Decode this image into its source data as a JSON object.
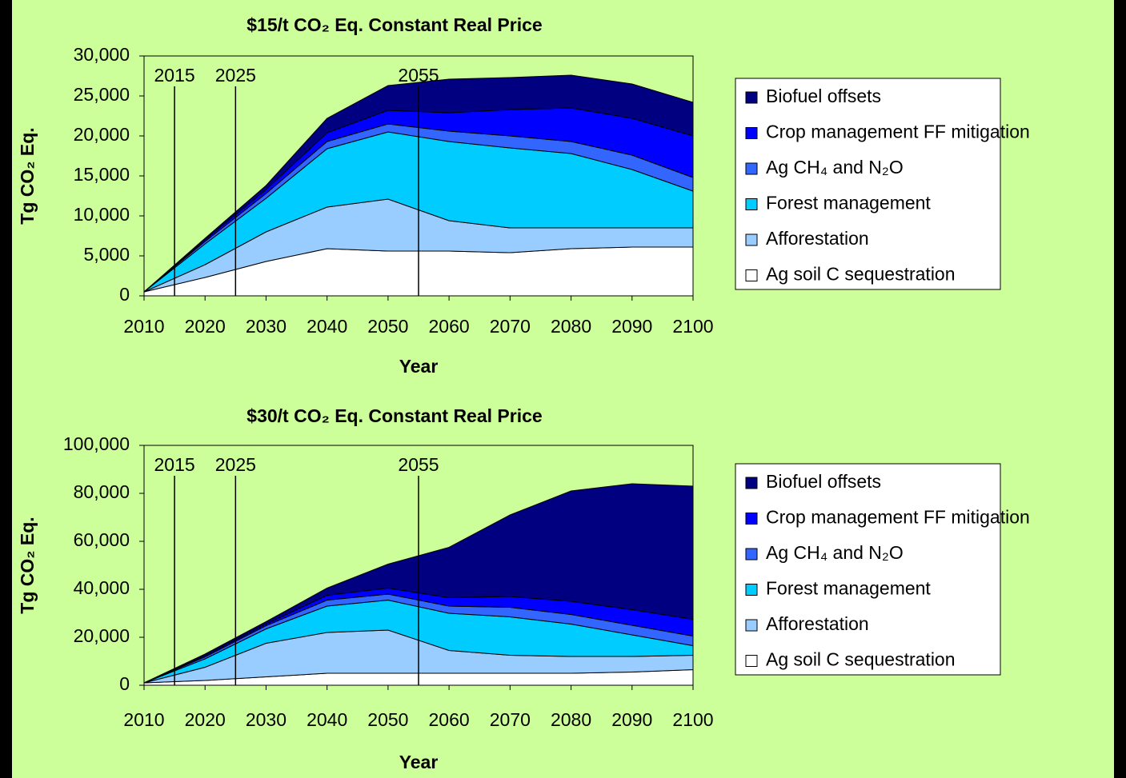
{
  "chart_data": [
    {
      "type": "area",
      "stacked": true,
      "title": "$15/t CO₂ Eq. Constant Real Price",
      "xlabel": "Year",
      "ylabel": "Tg CO₂ Eq.",
      "x": [
        2010,
        2020,
        2030,
        2040,
        2050,
        2060,
        2070,
        2080,
        2090,
        2100
      ],
      "xlim": [
        2010,
        2100
      ],
      "xticks": [
        2010,
        2020,
        2030,
        2040,
        2050,
        2060,
        2070,
        2080,
        2090,
        2100
      ],
      "ylim": [
        0,
        30000
      ],
      "yticks": [
        0,
        {
          "value": 5000,
          "label": "5,000"
        },
        {
          "value": 10000,
          "label": "10,000"
        },
        {
          "value": 15000,
          "label": "15,000"
        },
        {
          "value": 20000,
          "label": "20,000"
        },
        {
          "value": 25000,
          "label": "25,000"
        },
        {
          "value": 30000,
          "label": "30,000"
        }
      ],
      "vlines": [
        2015,
        2025,
        2055
      ],
      "series": [
        {
          "name": "Ag soil C sequestration",
          "color": "#ffffff",
          "values": [
            500,
            2300,
            4300,
            5900,
            5600,
            5600,
            5400,
            5900,
            6100,
            6100
          ]
        },
        {
          "name": "Afforestation",
          "color": "#99ccff",
          "values": [
            0,
            1600,
            3700,
            5200,
            6500,
            3800,
            3100,
            2600,
            2400,
            2400
          ]
        },
        {
          "name": "Forest management",
          "color": "#00ccff",
          "values": [
            0,
            2600,
            4200,
            7300,
            8400,
            9900,
            10000,
            9300,
            7300,
            4600
          ]
        },
        {
          "name": "Ag CH₄ and N₂O",
          "color": "#3366ff",
          "values": [
            0,
            300,
            600,
            900,
            1000,
            1300,
            1500,
            1500,
            1800,
            1700
          ]
        },
        {
          "name": "Crop management FF mitigation",
          "color": "#0000ff",
          "values": [
            0,
            200,
            500,
            1100,
            1700,
            2300,
            3300,
            4200,
            4600,
            5200
          ]
        },
        {
          "name": "Biofuel offsets",
          "color": "#000080",
          "values": [
            0,
            200,
            500,
            1800,
            3100,
            4200,
            4000,
            4100,
            4300,
            4200
          ]
        }
      ]
    },
    {
      "type": "area",
      "stacked": true,
      "title": "$30/t CO₂ Eq. Constant Real Price",
      "xlabel": "Year",
      "ylabel": "Tg CO₂ Eq.",
      "x": [
        2010,
        2020,
        2030,
        2040,
        2050,
        2060,
        2070,
        2080,
        2090,
        2100
      ],
      "xlim": [
        2010,
        2100
      ],
      "xticks": [
        2010,
        2020,
        2030,
        2040,
        2050,
        2060,
        2070,
        2080,
        2090,
        2100
      ],
      "ylim": [
        0,
        100000
      ],
      "yticks": [
        0,
        {
          "value": 20000,
          "label": "20,000"
        },
        {
          "value": 40000,
          "label": "40,000"
        },
        {
          "value": 60000,
          "label": "60,000"
        },
        {
          "value": 80000,
          "label": "80,000"
        },
        {
          "value": 100000,
          "label": "100,000"
        }
      ],
      "vlines": [
        2015,
        2025,
        2055
      ],
      "series": [
        {
          "name": "Ag soil C sequestration",
          "color": "#ffffff",
          "values": [
            1000,
            2000,
            3500,
            5000,
            5000,
            5000,
            5000,
            5000,
            5500,
            6500
          ]
        },
        {
          "name": "Afforestation",
          "color": "#99ccff",
          "values": [
            0,
            5500,
            14000,
            17000,
            18000,
            9500,
            7500,
            7000,
            6500,
            6000
          ]
        },
        {
          "name": "Forest management",
          "color": "#00ccff",
          "values": [
            0,
            3500,
            6000,
            11000,
            12500,
            15500,
            16000,
            13500,
            9000,
            4000
          ]
        },
        {
          "name": "Ag CH₄ and N₂O",
          "color": "#3366ff",
          "values": [
            0,
            800,
            1300,
            2500,
            2500,
            3000,
            4000,
            4000,
            4000,
            4000
          ]
        },
        {
          "name": "Crop management FF mitigation",
          "color": "#0000ff",
          "values": [
            0,
            500,
            700,
            2000,
            2500,
            3500,
            4500,
            5500,
            6500,
            7000
          ]
        },
        {
          "name": "Biofuel offsets",
          "color": "#000080",
          "values": [
            0,
            700,
            1000,
            3000,
            10000,
            21000,
            34000,
            46000,
            52500,
            55500
          ]
        }
      ]
    }
  ]
}
